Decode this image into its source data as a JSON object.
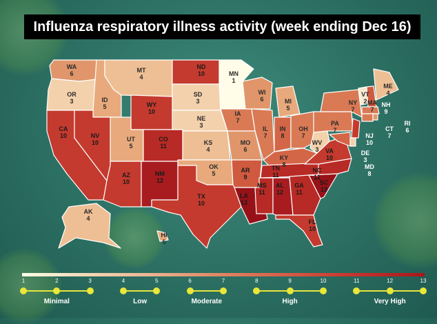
{
  "title": "Influenza respiratory illness activity  (week ending Dec 16)",
  "colors": {
    "1": "#fffde8",
    "2": "#fbe9cf",
    "3": "#f3d1ac",
    "4": "#eebf94",
    "5": "#e8aa7c",
    "6": "#e0966a",
    "7": "#d97a55",
    "8": "#d46648",
    "9": "#cf5a40",
    "10": "#c43a2e",
    "11": "#b82a25",
    "12": "#a81c20",
    "13": "#971218"
  },
  "states": [
    {
      "abbr": "WA",
      "value": "6"
    },
    {
      "abbr": "OR",
      "value": "3"
    },
    {
      "abbr": "CA",
      "value": "10"
    },
    {
      "abbr": "ID",
      "value": "5"
    },
    {
      "abbr": "NV",
      "value": "10"
    },
    {
      "abbr": "MT",
      "value": "4"
    },
    {
      "abbr": "WY",
      "value": "10"
    },
    {
      "abbr": "UT",
      "value": "5"
    },
    {
      "abbr": "CO",
      "value": "11"
    },
    {
      "abbr": "AZ",
      "value": "10"
    },
    {
      "abbr": "NM",
      "value": "12"
    },
    {
      "abbr": "ND",
      "value": "10"
    },
    {
      "abbr": "SD",
      "value": "3"
    },
    {
      "abbr": "NE",
      "value": "3"
    },
    {
      "abbr": "KS",
      "value": "4"
    },
    {
      "abbr": "OK",
      "value": "5"
    },
    {
      "abbr": "TX",
      "value": "10"
    },
    {
      "abbr": "MN",
      "value": "1"
    },
    {
      "abbr": "IA",
      "value": "7"
    },
    {
      "abbr": "MO",
      "value": "6"
    },
    {
      "abbr": "AR",
      "value": "9"
    },
    {
      "abbr": "LA",
      "value": "13"
    },
    {
      "abbr": "WI",
      "value": "6"
    },
    {
      "abbr": "IL",
      "value": "7"
    },
    {
      "abbr": "MI",
      "value": "5"
    },
    {
      "abbr": "IN",
      "value": "8"
    },
    {
      "abbr": "OH",
      "value": "7"
    },
    {
      "abbr": "KY",
      "value": "8"
    },
    {
      "abbr": "TN",
      "value": "11"
    },
    {
      "abbr": "MS",
      "value": "11"
    },
    {
      "abbr": "AL",
      "value": "12"
    },
    {
      "abbr": "GA",
      "value": "11"
    },
    {
      "abbr": "FL",
      "value": "10"
    },
    {
      "abbr": "SC",
      "value": "13"
    },
    {
      "abbr": "NC",
      "value": "11"
    },
    {
      "abbr": "VA",
      "value": "10"
    },
    {
      "abbr": "WV",
      "value": "3"
    },
    {
      "abbr": "PA",
      "value": "7"
    },
    {
      "abbr": "NY",
      "value": "7"
    },
    {
      "abbr": "VT",
      "value": "2"
    },
    {
      "abbr": "NH",
      "value": "9"
    },
    {
      "abbr": "ME",
      "value": "4"
    },
    {
      "abbr": "MA",
      "value": "7"
    },
    {
      "abbr": "RI",
      "value": "6"
    },
    {
      "abbr": "CT",
      "value": "7"
    },
    {
      "abbr": "NJ",
      "value": "10"
    },
    {
      "abbr": "DE",
      "value": "3"
    },
    {
      "abbr": "MD",
      "value": "8"
    },
    {
      "abbr": "AK",
      "value": "4"
    },
    {
      "abbr": "HI",
      "value": "5"
    }
  ],
  "legend": {
    "ticks": [
      "1",
      "2",
      "3",
      "4",
      "5",
      "6",
      "7",
      "8",
      "9",
      "10",
      "11",
      "12",
      "13"
    ],
    "categories": [
      "Minimal",
      "Low",
      "Moderate",
      "High",
      "Very High"
    ]
  }
}
